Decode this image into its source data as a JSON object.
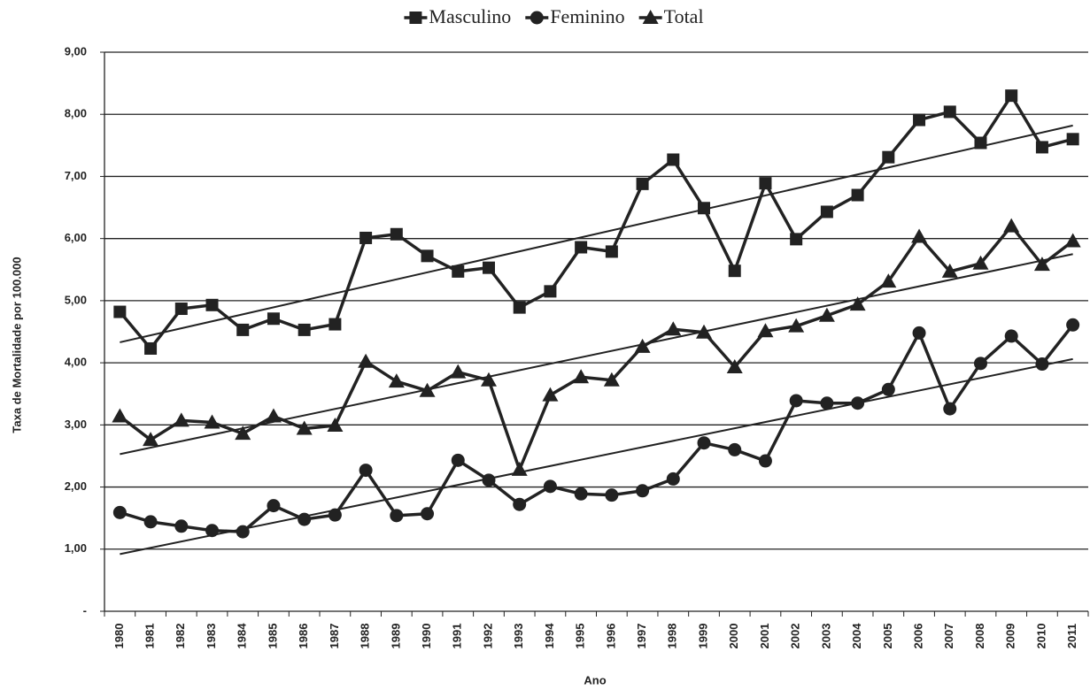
{
  "chart_data": {
    "type": "line",
    "x_label": "Ano",
    "y_label": "Taxa de Mortalidade  por 100.000",
    "categories": [
      "1980",
      "1981",
      "1982",
      "1983",
      "1984",
      "1985",
      "1986",
      "1987",
      "1988",
      "1989",
      "1990",
      "1991",
      "1992",
      "1993",
      "1994",
      "1995",
      "1996",
      "1997",
      "1998",
      "1999",
      "2000",
      "2001",
      "2002",
      "2003",
      "2004",
      "2005",
      "2006",
      "2007",
      "2008",
      "2009",
      "2010",
      "2011"
    ],
    "ylim": [
      0,
      9
    ],
    "yticks": [
      {
        "value": 0,
        "label": "-"
      },
      {
        "value": 1,
        "label": "1,00"
      },
      {
        "value": 2,
        "label": "2,00"
      },
      {
        "value": 3,
        "label": "3,00"
      },
      {
        "value": 4,
        "label": "4,00"
      },
      {
        "value": 5,
        "label": "5,00"
      },
      {
        "value": 6,
        "label": "6,00"
      },
      {
        "value": 7,
        "label": "7,00"
      },
      {
        "value": 8,
        "label": "8,00"
      },
      {
        "value": 9,
        "label": "9,00"
      }
    ],
    "grid": true,
    "legend": "top",
    "series": [
      {
        "name": "Masculino",
        "color": "#222222",
        "marker": "square",
        "values": [
          4.82,
          4.23,
          4.87,
          4.93,
          4.53,
          4.71,
          4.53,
          4.62,
          6.01,
          6.07,
          5.72,
          5.47,
          5.53,
          4.89,
          5.15,
          5.86,
          5.79,
          6.88,
          7.27,
          6.49,
          5.48,
          6.89,
          5.99,
          6.43,
          6.7,
          7.31,
          7.91,
          8.04,
          7.54,
          8.3,
          7.47,
          7.6
        ],
        "trend": [
          4.33,
          7.82
        ]
      },
      {
        "name": "Feminino",
        "color": "#222222",
        "marker": "circle",
        "values": [
          1.59,
          1.44,
          1.37,
          1.3,
          1.28,
          1.7,
          1.48,
          1.55,
          2.27,
          1.54,
          1.57,
          2.43,
          2.11,
          1.72,
          2.01,
          1.89,
          1.87,
          1.94,
          2.13,
          2.71,
          2.6,
          2.42,
          3.39,
          3.35,
          3.35,
          3.57,
          4.48,
          3.26,
          3.99,
          4.43,
          3.98,
          4.61
        ],
        "trend": [
          0.92,
          4.06
        ]
      },
      {
        "name": "Total",
        "color": "#222222",
        "marker": "triangle",
        "values": [
          3.14,
          2.76,
          3.07,
          3.04,
          2.86,
          3.14,
          2.94,
          2.99,
          4.02,
          3.7,
          3.55,
          3.85,
          3.72,
          2.28,
          3.48,
          3.77,
          3.72,
          4.26,
          4.54,
          4.49,
          3.93,
          4.51,
          4.59,
          4.76,
          4.94,
          5.31,
          6.03,
          5.47,
          5.6,
          6.2,
          5.58,
          5.96
        ],
        "trend": [
          2.53,
          5.75
        ]
      }
    ]
  }
}
